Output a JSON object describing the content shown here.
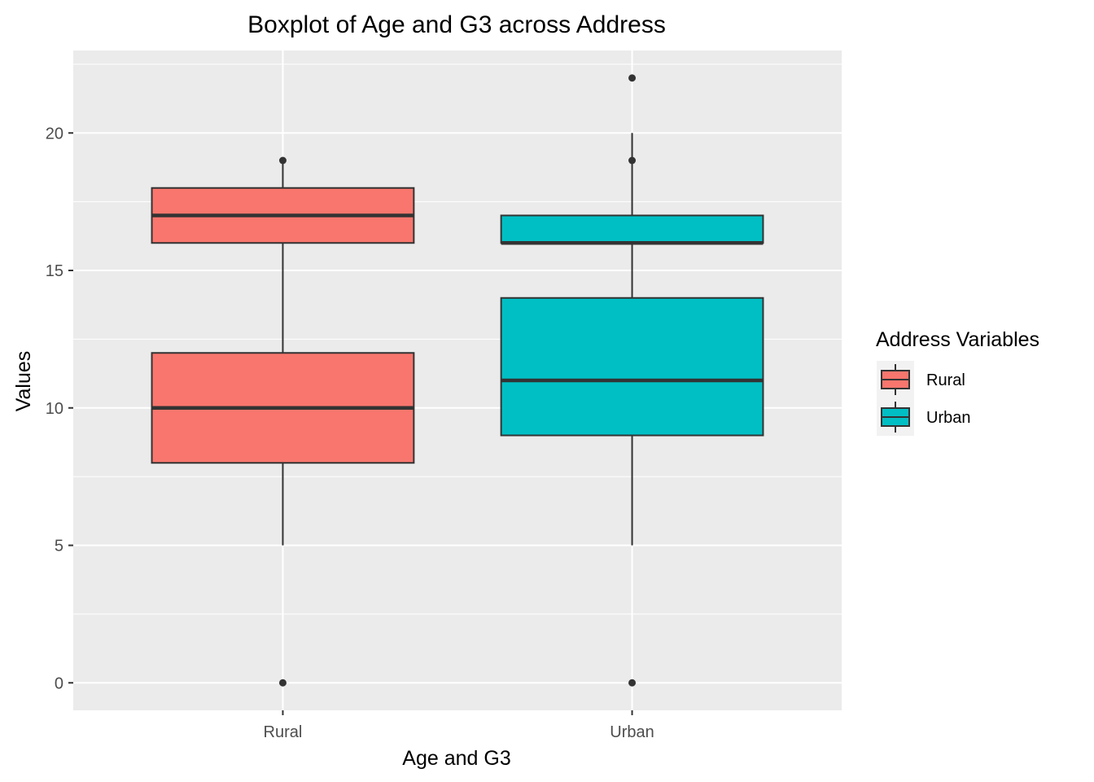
{
  "chart_data": {
    "type": "boxplot",
    "title": "Boxplot of Age and G3 across Address",
    "xlabel": "Age and G3",
    "ylabel": "Values",
    "categories": [
      "Rural",
      "Urban"
    ],
    "ylim": [
      -1,
      23
    ],
    "yticks": [
      0,
      5,
      10,
      15,
      20
    ],
    "grid": true,
    "legend": {
      "title": "Address Variables",
      "placement": "right",
      "entries": [
        {
          "label": "Rural",
          "color": "#F8766D"
        },
        {
          "label": "Urban",
          "color": "#00BFC4"
        }
      ]
    },
    "boxes": [
      {
        "category": "Rural",
        "group": "Rural",
        "color": "#F8766D",
        "whisker_low": 16,
        "q1": 16,
        "median": 17,
        "q3": 18,
        "whisker_high": 19,
        "outliers": [
          19
        ]
      },
      {
        "category": "Rural",
        "group": "Rural",
        "color": "#F8766D",
        "whisker_low": 5,
        "q1": 8,
        "median": 10,
        "q3": 12,
        "whisker_high": 16,
        "outliers": [
          0
        ]
      },
      {
        "category": "Urban",
        "group": "Urban",
        "color": "#00BFC4",
        "whisker_low": 16,
        "q1": 16,
        "median": 16,
        "q3": 17,
        "whisker_high": 20,
        "outliers": [
          19,
          22
        ]
      },
      {
        "category": "Urban",
        "group": "Urban",
        "color": "#00BFC4",
        "whisker_low": 5,
        "q1": 9,
        "median": 11,
        "q3": 14,
        "whisker_high": 16,
        "outliers": [
          0
        ]
      }
    ]
  }
}
